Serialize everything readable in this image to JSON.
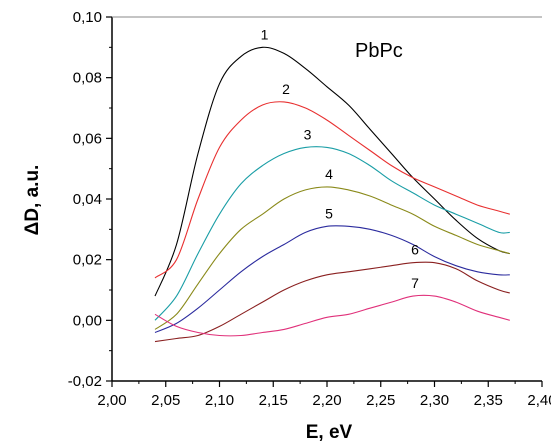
{
  "chart_data": {
    "type": "line",
    "title": "PbPc",
    "xlabel": "E, eV",
    "ylabel": "ΔD, a.u.",
    "xlim": [
      2.0,
      2.4
    ],
    "ylim": [
      -0.02,
      0.1
    ],
    "x_ticks": [
      "2,00",
      "2,05",
      "2,10",
      "2,15",
      "2,20",
      "2,25",
      "2,30",
      "2,35",
      "2,40"
    ],
    "y_ticks": [
      "-0,02",
      "0,00",
      "0,02",
      "0,04",
      "0,06",
      "0,08",
      "0,10"
    ],
    "grid": false,
    "series": [
      {
        "name": "1",
        "color": "#000000",
        "x": [
          2.04,
          2.06,
          2.08,
          2.1,
          2.12,
          2.14,
          2.16,
          2.18,
          2.2,
          2.22,
          2.24,
          2.26,
          2.28,
          2.3,
          2.32,
          2.34,
          2.36,
          2.37
        ],
        "y": [
          0.008,
          0.025,
          0.055,
          0.078,
          0.087,
          0.09,
          0.088,
          0.083,
          0.077,
          0.071,
          0.063,
          0.055,
          0.047,
          0.04,
          0.033,
          0.027,
          0.023,
          0.022
        ]
      },
      {
        "name": "2",
        "color": "#e83030",
        "x": [
          2.04,
          2.06,
          2.08,
          2.1,
          2.12,
          2.14,
          2.16,
          2.18,
          2.2,
          2.22,
          2.24,
          2.26,
          2.28,
          2.3,
          2.32,
          2.34,
          2.36,
          2.37
        ],
        "y": [
          0.014,
          0.02,
          0.04,
          0.057,
          0.066,
          0.071,
          0.072,
          0.07,
          0.066,
          0.061,
          0.056,
          0.051,
          0.047,
          0.044,
          0.041,
          0.038,
          0.036,
          0.035
        ]
      },
      {
        "name": "3",
        "color": "#1a9ea6",
        "x": [
          2.04,
          2.06,
          2.08,
          2.1,
          2.12,
          2.14,
          2.16,
          2.18,
          2.2,
          2.22,
          2.24,
          2.26,
          2.28,
          2.3,
          2.32,
          2.34,
          2.36,
          2.37
        ],
        "y": [
          0.0,
          0.008,
          0.022,
          0.035,
          0.045,
          0.051,
          0.055,
          0.057,
          0.057,
          0.055,
          0.051,
          0.046,
          0.042,
          0.038,
          0.035,
          0.032,
          0.029,
          0.029
        ]
      },
      {
        "name": "4",
        "color": "#8a8a1a",
        "x": [
          2.04,
          2.06,
          2.08,
          2.1,
          2.12,
          2.14,
          2.16,
          2.18,
          2.2,
          2.22,
          2.24,
          2.26,
          2.28,
          2.3,
          2.32,
          2.34,
          2.36,
          2.37
        ],
        "y": [
          -0.003,
          0.002,
          0.012,
          0.022,
          0.03,
          0.035,
          0.04,
          0.043,
          0.044,
          0.043,
          0.041,
          0.038,
          0.035,
          0.031,
          0.028,
          0.025,
          0.023,
          0.022
        ]
      },
      {
        "name": "5",
        "color": "#2b2b9e",
        "x": [
          2.04,
          2.06,
          2.08,
          2.1,
          2.12,
          2.14,
          2.16,
          2.18,
          2.2,
          2.22,
          2.24,
          2.26,
          2.28,
          2.3,
          2.32,
          2.34,
          2.36,
          2.37
        ],
        "y": [
          -0.004,
          -0.001,
          0.004,
          0.01,
          0.016,
          0.021,
          0.025,
          0.029,
          0.031,
          0.031,
          0.03,
          0.028,
          0.025,
          0.021,
          0.018,
          0.016,
          0.015,
          0.015
        ]
      },
      {
        "name": "6",
        "color": "#8a2020",
        "x": [
          2.04,
          2.06,
          2.08,
          2.1,
          2.12,
          2.14,
          2.16,
          2.18,
          2.2,
          2.22,
          2.24,
          2.26,
          2.28,
          2.3,
          2.32,
          2.34,
          2.36,
          2.37
        ],
        "y": [
          -0.007,
          -0.006,
          -0.005,
          -0.002,
          0.002,
          0.006,
          0.01,
          0.013,
          0.015,
          0.016,
          0.017,
          0.018,
          0.019,
          0.019,
          0.017,
          0.013,
          0.01,
          0.009
        ]
      },
      {
        "name": "7",
        "color": "#e0307a",
        "x": [
          2.04,
          2.06,
          2.08,
          2.1,
          2.12,
          2.14,
          2.16,
          2.18,
          2.2,
          2.22,
          2.24,
          2.26,
          2.28,
          2.3,
          2.32,
          2.34,
          2.36,
          2.37
        ],
        "y": [
          0.002,
          -0.002,
          -0.004,
          -0.005,
          -0.005,
          -0.004,
          -0.003,
          -0.001,
          0.001,
          0.002,
          0.004,
          0.006,
          0.008,
          0.008,
          0.006,
          0.003,
          0.001,
          0.0
        ]
      }
    ]
  }
}
